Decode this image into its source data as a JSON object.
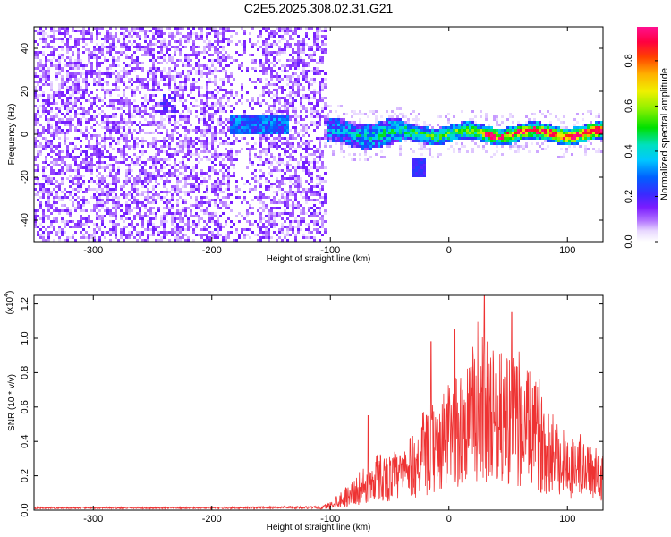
{
  "figure": {
    "title": "C2E5.2025.308.02.31.G21"
  },
  "chart_data": [
    {
      "type": "heatmap",
      "title": "C2E5.2025.308.02.31.G21",
      "xlabel": "Height of straight line (km)",
      "ylabel": "Frequency (Hz)",
      "xlim": [
        -350,
        130
      ],
      "ylim": [
        -50,
        50
      ],
      "xticks": [
        -300,
        -200,
        -100,
        0,
        100
      ],
      "yticks": [
        -40,
        -20,
        0,
        20,
        40
      ],
      "colorbar": {
        "label": "Normalized spectral amplitude",
        "range": [
          0.0,
          0.95
        ],
        "ticks": [
          "0.0",
          "0.2",
          "0.4",
          "0.6",
          "0.8"
        ],
        "tick_values": [
          0.0,
          0.2,
          0.4,
          0.6,
          0.8
        ]
      },
      "features": {
        "noise_region_x": [
          -350,
          -105
        ],
        "noise_amplitude": 0.08,
        "signal_band_center_hz": 1,
        "signal_band_half_width_hz": 4,
        "signal_start_x": -105,
        "peak_amplitude": 0.95
      }
    },
    {
      "type": "line",
      "xlabel": "Height of straight line (km)",
      "ylabel": "SNR (10 * v/v)",
      "ylabel_scale": "(x10",
      "ylabel_exponent": "4",
      "xlim": [
        -350,
        130
      ],
      "ylim": [
        0.0,
        1.25
      ],
      "xticks": [
        -300,
        -200,
        -100,
        0,
        100
      ],
      "yticks": [
        "0.0",
        "0.2",
        "0.4",
        "0.6",
        "0.8",
        "1.0",
        "1.2"
      ],
      "ytick_values": [
        0.0,
        0.2,
        0.4,
        0.6,
        0.8,
        1.0,
        1.2
      ],
      "series": [
        {
          "name": "SNR",
          "color": "#ee3333",
          "x": [
            -350,
            -300,
            -250,
            -200,
            -150,
            -110,
            -100,
            -90,
            -80,
            -70,
            -60,
            -50,
            -40,
            -30,
            -20,
            -10,
            0,
            10,
            20,
            30,
            40,
            50,
            60,
            70,
            80,
            90,
            100,
            110,
            120,
            130
          ],
          "envelope": [
            0.01,
            0.01,
            0.01,
            0.01,
            0.015,
            0.015,
            0.05,
            0.12,
            0.18,
            0.22,
            0.35,
            0.32,
            0.35,
            0.45,
            0.55,
            0.6,
            0.75,
            0.8,
            0.95,
            1.05,
            0.9,
            0.95,
            0.85,
            0.8,
            0.65,
            0.55,
            0.45,
            0.42,
            0.38,
            0.35
          ],
          "spikes": [
            {
              "x": 30,
              "y": 1.25
            },
            {
              "x": 53,
              "y": 1.15
            },
            {
              "x": 5,
              "y": 1.05
            },
            {
              "x": -15,
              "y": 0.98
            },
            {
              "x": -68,
              "y": 0.55
            }
          ]
        }
      ]
    }
  ]
}
